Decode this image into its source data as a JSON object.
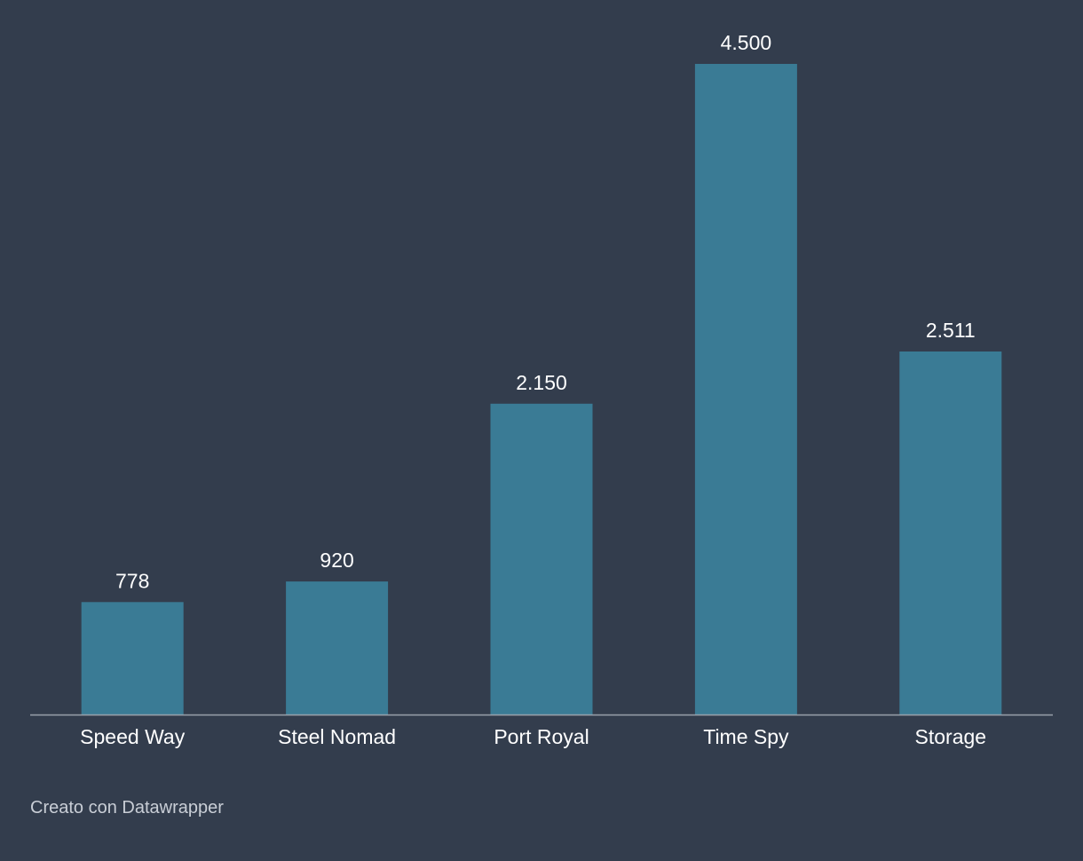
{
  "chart_data": {
    "type": "bar",
    "categories": [
      "Speed Way",
      "Steel Nomad",
      "Port Royal",
      "Time Spy",
      "Storage"
    ],
    "values": [
      778,
      920,
      2150,
      4500,
      2511
    ],
    "value_labels": [
      "778",
      "920",
      "2.150",
      "4.500",
      "2.511"
    ],
    "title": "",
    "xlabel": "",
    "ylabel": "",
    "ylim": [
      0,
      4500
    ],
    "grid": false,
    "legend": "none",
    "colors": {
      "background": "#333d4d",
      "bar": "#3a7b95",
      "axis": "#9aa1ab",
      "text": "#ffffff",
      "credit": "#c9ced6"
    }
  },
  "footer": {
    "credit": "Creato con Datawrapper"
  }
}
